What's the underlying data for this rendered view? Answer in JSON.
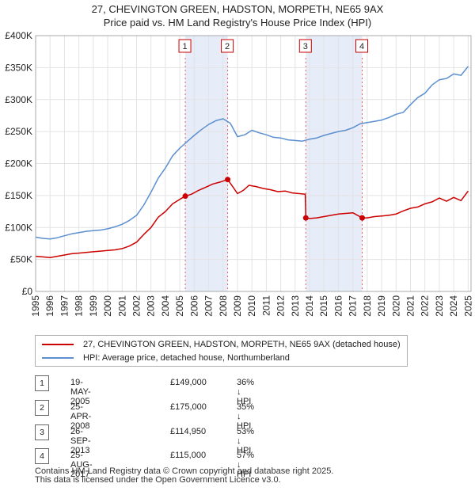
{
  "title_line1": "27, CHEVINGTON GREEN, HADSTON, MORPETH, NE65 9AX",
  "title_line2": "Price paid vs. HM Land Registry's House Price Index (HPI)",
  "chart_data": {
    "type": "line",
    "ylim": [
      0,
      400000
    ],
    "xlim": [
      1995.0,
      2025.2
    ],
    "y_ticks": [
      0,
      50000,
      100000,
      150000,
      200000,
      250000,
      300000,
      350000,
      400000
    ],
    "y_tick_labels": [
      "£0",
      "£50K",
      "£100K",
      "£150K",
      "£200K",
      "£250K",
      "£300K",
      "£350K",
      "£400K"
    ],
    "x_ticks": [
      1995,
      1996,
      1997,
      1998,
      1999,
      2000,
      2001,
      2002,
      2003,
      2004,
      2005,
      2006,
      2007,
      2008,
      2009,
      2010,
      2011,
      2012,
      2013,
      2014,
      2015,
      2016,
      2017,
      2018,
      2019,
      2020,
      2021,
      2022,
      2023,
      2024,
      2025
    ],
    "x_tick_labels": [
      "1995",
      "1996",
      "1997",
      "1998",
      "1999",
      "2000",
      "2001",
      "2002",
      "2003",
      "2004",
      "2005",
      "2006",
      "2007",
      "2008",
      "2009",
      "2010",
      "2011",
      "2012",
      "2013",
      "2014",
      "2015",
      "2016",
      "2017",
      "2018",
      "2019",
      "2020",
      "2021",
      "2022",
      "2023",
      "2024",
      "2025"
    ],
    "grid": true,
    "shaded_periods": [
      [
        2005.38,
        2008.32
      ],
      [
        2013.74,
        2017.65
      ]
    ],
    "series": [
      {
        "name": "27, CHEVINGTON GREEN, HADSTON, MORPETH, NE65 9AX (detached house)",
        "color": "#cc0000",
        "x": [
          1995.0,
          1995.5,
          1996.0,
          1996.5,
          1997.0,
          1997.5,
          1998.0,
          1998.5,
          1999.0,
          1999.5,
          2000.0,
          2000.5,
          2001.0,
          2001.5,
          2002.0,
          2002.5,
          2003.0,
          2003.5,
          2004.0,
          2004.5,
          2005.0,
          2005.38,
          2005.8,
          2006.3,
          2006.8,
          2007.3,
          2007.8,
          2008.32,
          2008.7,
          2009.0,
          2009.4,
          2009.8,
          2010.3,
          2010.8,
          2011.3,
          2011.8,
          2012.3,
          2012.8,
          2013.3,
          2013.7,
          2013.74,
          2014.0,
          2014.5,
          2015.0,
          2015.5,
          2016.0,
          2016.5,
          2017.0,
          2017.65,
          2018.0,
          2018.5,
          2019.0,
          2019.5,
          2020.0,
          2020.5,
          2021.0,
          2021.5,
          2022.0,
          2022.5,
          2023.0,
          2023.5,
          2024.0,
          2024.5,
          2025.0
        ],
        "y": [
          55000,
          54000,
          53000,
          55000,
          57000,
          59000,
          60000,
          61000,
          62000,
          63000,
          64000,
          65000,
          67000,
          71000,
          77000,
          89000,
          100000,
          116000,
          125000,
          137000,
          144000,
          149000,
          152000,
          158000,
          163000,
          168000,
          171000,
          175000,
          163000,
          153000,
          158000,
          166000,
          164000,
          161000,
          159000,
          156000,
          157000,
          154000,
          153000,
          152000,
          114950,
          114000,
          115000,
          117000,
          119000,
          121000,
          122000,
          123000,
          115000,
          115000,
          117000,
          118000,
          119000,
          121000,
          126000,
          130000,
          132000,
          137000,
          140000,
          146000,
          141000,
          147000,
          142000,
          157000
        ]
      },
      {
        "name": "HPI: Average price, detached house, Northumberland",
        "color": "#5b8fd0",
        "x": [
          1995.0,
          1995.5,
          1996.0,
          1996.5,
          1997.0,
          1997.5,
          1998.0,
          1998.5,
          1999.0,
          1999.5,
          2000.0,
          2000.5,
          2001.0,
          2001.5,
          2002.0,
          2002.5,
          2003.0,
          2003.5,
          2004.0,
          2004.5,
          2005.0,
          2005.5,
          2006.0,
          2006.5,
          2007.0,
          2007.5,
          2008.0,
          2008.5,
          2009.0,
          2009.5,
          2010.0,
          2010.5,
          2011.0,
          2011.5,
          2012.0,
          2012.5,
          2013.0,
          2013.5,
          2014.0,
          2014.5,
          2015.0,
          2015.5,
          2016.0,
          2016.5,
          2017.0,
          2017.5,
          2018.0,
          2018.5,
          2019.0,
          2019.5,
          2020.0,
          2020.5,
          2021.0,
          2021.5,
          2022.0,
          2022.5,
          2023.0,
          2023.5,
          2024.0,
          2024.5,
          2025.0
        ],
        "y": [
          85000,
          83000,
          82000,
          84000,
          87000,
          90000,
          92000,
          94000,
          95000,
          96000,
          98000,
          101000,
          105000,
          111000,
          119000,
          135000,
          155000,
          177000,
          193000,
          212000,
          224000,
          234000,
          244000,
          253000,
          261000,
          267000,
          270000,
          263000,
          242000,
          245000,
          252000,
          248000,
          245000,
          241000,
          240000,
          237000,
          236000,
          235000,
          238000,
          240000,
          244000,
          247000,
          250000,
          252000,
          256000,
          262000,
          264000,
          266000,
          268000,
          272000,
          277000,
          280000,
          292000,
          303000,
          310000,
          323000,
          331000,
          333000,
          340000,
          338000,
          352000
        ]
      }
    ],
    "sales": [
      {
        "label": "1",
        "x": 2005.38,
        "y": 149000
      },
      {
        "label": "2",
        "x": 2008.32,
        "y": 175000
      },
      {
        "label": "3",
        "x": 2013.74,
        "y": 114950
      },
      {
        "label": "4",
        "x": 2017.65,
        "y": 115000
      }
    ]
  },
  "legend": {
    "item1": "27, CHEVINGTON GREEN, HADSTON, MORPETH, NE65 9AX (detached house)",
    "item2": "HPI: Average price, detached house, Northumberland",
    "color1": "#cc0000",
    "color2": "#5b8fd0"
  },
  "transactions": [
    {
      "num": "1",
      "date": "19-MAY-2005",
      "price": "£149,000",
      "hpi": "36% ↓ HPI"
    },
    {
      "num": "2",
      "date": "25-APR-2008",
      "price": "£175,000",
      "hpi": "35% ↓ HPI"
    },
    {
      "num": "3",
      "date": "26-SEP-2013",
      "price": "£114,950",
      "hpi": "53% ↓ HPI"
    },
    {
      "num": "4",
      "date": "25-AUG-2017",
      "price": "£115,000",
      "hpi": "57% ↓ HPI"
    }
  ],
  "footer_line1": "Contains HM Land Registry data © Crown copyright and database right 2025.",
  "footer_line2": "This data is licensed under the Open Government Licence v3.0."
}
